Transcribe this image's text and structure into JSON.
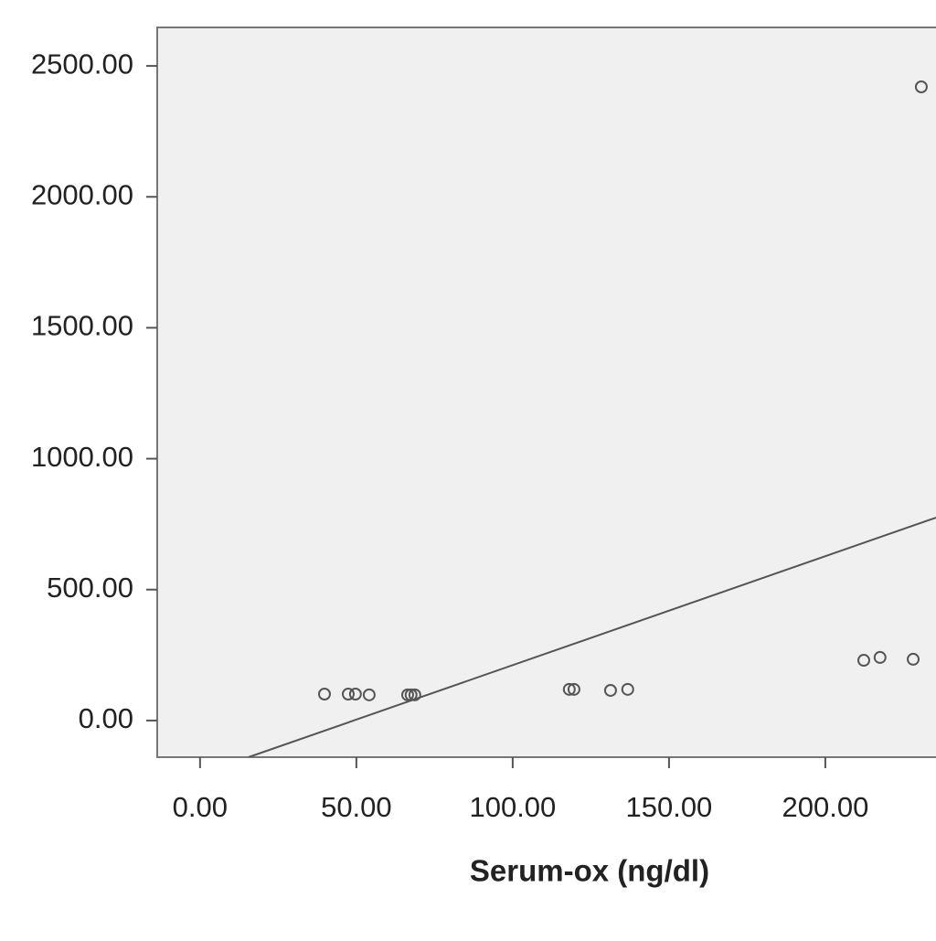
{
  "chart_data": {
    "type": "scatter",
    "x_label": "Serum-ox (ng/dl)",
    "xlim": [
      -13.7,
      235.4
    ],
    "ylim": [
      -140,
      2647
    ],
    "xticks": [
      {
        "value": 0,
        "label": "0.00"
      },
      {
        "value": 50,
        "label": "50.00"
      },
      {
        "value": 100,
        "label": "100.00"
      },
      {
        "value": 150,
        "label": "150.00"
      },
      {
        "value": 200,
        "label": "200.00"
      }
    ],
    "yticks": [
      {
        "value": 0,
        "label": "0.00"
      },
      {
        "value": 500,
        "label": "500.00"
      },
      {
        "value": 1000,
        "label": "1000.00"
      },
      {
        "value": 1500,
        "label": "1500.00"
      },
      {
        "value": 2000,
        "label": "2000.00"
      },
      {
        "value": 2500,
        "label": "2500.00"
      }
    ],
    "series": [
      {
        "color": "#555555",
        "x": [
          39.8,
          47.4,
          49.7,
          54.1,
          66.4,
          67.5,
          68.7,
          118.1,
          119.6,
          131.3,
          136.8,
          212.3,
          217.5,
          228.1,
          230.7
        ],
        "values": [
          101,
          101,
          101,
          98,
          98,
          98,
          98,
          119,
          119,
          115,
          119,
          230,
          241,
          234,
          2420
        ]
      }
    ],
    "fit_line": {
      "color": "#555555",
      "x": [
        15.5,
        235.4
      ],
      "y": [
        -140,
        775
      ]
    },
    "plot_background": "#f0f0f0"
  }
}
